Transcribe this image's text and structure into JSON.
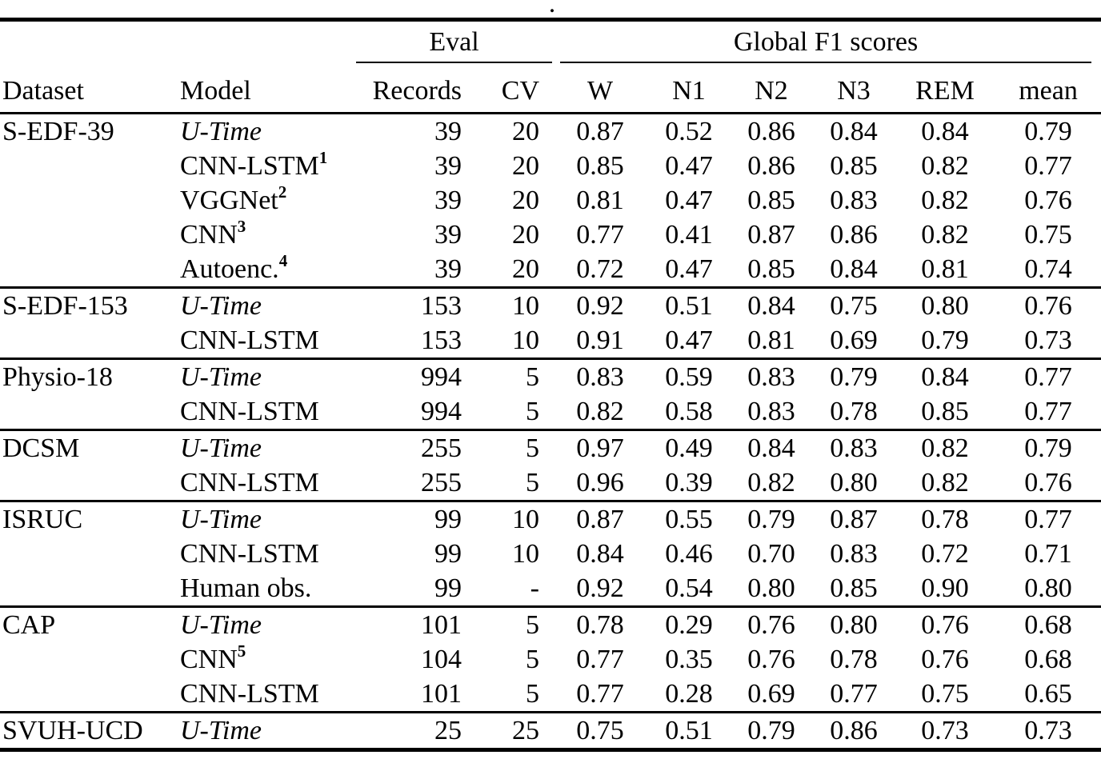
{
  "colors": {
    "text": "#000000",
    "background": "#ffffff",
    "rule": "#000000"
  },
  "caption_fragment": ".",
  "header": {
    "group_eval": "Eval",
    "group_f1": "Global F1 scores",
    "cols": [
      "Dataset",
      "Model",
      "Records",
      "CV",
      "W",
      "N1",
      "N2",
      "N3",
      "REM",
      "mean"
    ]
  },
  "groups": [
    {
      "dataset": "S-EDF-39",
      "rows": [
        {
          "model": "U-Time",
          "italic": true,
          "sup": "",
          "records": "39",
          "cv": "20",
          "scores": [
            "0.87",
            "0.52",
            "0.86",
            "0.84",
            "0.84",
            "0.79"
          ]
        },
        {
          "model": "CNN-LSTM",
          "italic": false,
          "sup": "1",
          "records": "39",
          "cv": "20",
          "scores": [
            "0.85",
            "0.47",
            "0.86",
            "0.85",
            "0.82",
            "0.77"
          ]
        },
        {
          "model": "VGGNet",
          "italic": false,
          "sup": "2",
          "records": "39",
          "cv": "20",
          "scores": [
            "0.81",
            "0.47",
            "0.85",
            "0.83",
            "0.82",
            "0.76"
          ]
        },
        {
          "model": "CNN",
          "italic": false,
          "sup": "3",
          "records": "39",
          "cv": "20",
          "scores": [
            "0.77",
            "0.41",
            "0.87",
            "0.86",
            "0.82",
            "0.75"
          ]
        },
        {
          "model": "Autoenc.",
          "italic": false,
          "sup": "4",
          "records": "39",
          "cv": "20",
          "scores": [
            "0.72",
            "0.47",
            "0.85",
            "0.84",
            "0.81",
            "0.74"
          ]
        }
      ]
    },
    {
      "dataset": "S-EDF-153",
      "rows": [
        {
          "model": "U-Time",
          "italic": true,
          "sup": "",
          "records": "153",
          "cv": "10",
          "scores": [
            "0.92",
            "0.51",
            "0.84",
            "0.75",
            "0.80",
            "0.76"
          ]
        },
        {
          "model": "CNN-LSTM",
          "italic": false,
          "sup": "",
          "records": "153",
          "cv": "10",
          "scores": [
            "0.91",
            "0.47",
            "0.81",
            "0.69",
            "0.79",
            "0.73"
          ]
        }
      ]
    },
    {
      "dataset": "Physio-18",
      "rows": [
        {
          "model": "U-Time",
          "italic": true,
          "sup": "",
          "records": "994",
          "cv": "5",
          "scores": [
            "0.83",
            "0.59",
            "0.83",
            "0.79",
            "0.84",
            "0.77"
          ]
        },
        {
          "model": "CNN-LSTM",
          "italic": false,
          "sup": "",
          "records": "994",
          "cv": "5",
          "scores": [
            "0.82",
            "0.58",
            "0.83",
            "0.78",
            "0.85",
            "0.77"
          ]
        }
      ]
    },
    {
      "dataset": "DCSM",
      "rows": [
        {
          "model": "U-Time",
          "italic": true,
          "sup": "",
          "records": "255",
          "cv": "5",
          "scores": [
            "0.97",
            "0.49",
            "0.84",
            "0.83",
            "0.82",
            "0.79"
          ]
        },
        {
          "model": "CNN-LSTM",
          "italic": false,
          "sup": "",
          "records": "255",
          "cv": "5",
          "scores": [
            "0.96",
            "0.39",
            "0.82",
            "0.80",
            "0.82",
            "0.76"
          ]
        }
      ]
    },
    {
      "dataset": "ISRUC",
      "rows": [
        {
          "model": "U-Time",
          "italic": true,
          "sup": "",
          "records": "99",
          "cv": "10",
          "scores": [
            "0.87",
            "0.55",
            "0.79",
            "0.87",
            "0.78",
            "0.77"
          ]
        },
        {
          "model": "CNN-LSTM",
          "italic": false,
          "sup": "",
          "records": "99",
          "cv": "10",
          "scores": [
            "0.84",
            "0.46",
            "0.70",
            "0.83",
            "0.72",
            "0.71"
          ]
        },
        {
          "model": "Human obs.",
          "italic": false,
          "sup": "",
          "records": "99",
          "cv": "-",
          "scores": [
            "0.92",
            "0.54",
            "0.80",
            "0.85",
            "0.90",
            "0.80"
          ]
        }
      ]
    },
    {
      "dataset": "CAP",
      "rows": [
        {
          "model": "U-Time",
          "italic": true,
          "sup": "",
          "records": "101",
          "cv": "5",
          "scores": [
            "0.78",
            "0.29",
            "0.76",
            "0.80",
            "0.76",
            "0.68"
          ]
        },
        {
          "model": "CNN",
          "italic": false,
          "sup": "5",
          "records": "104",
          "cv": "5",
          "scores": [
            "0.77",
            "0.35",
            "0.76",
            "0.78",
            "0.76",
            "0.68"
          ]
        },
        {
          "model": "CNN-LSTM",
          "italic": false,
          "sup": "",
          "records": "101",
          "cv": "5",
          "scores": [
            "0.77",
            "0.28",
            "0.69",
            "0.77",
            "0.75",
            "0.65"
          ]
        }
      ]
    },
    {
      "dataset": "SVUH-UCD",
      "rows": [
        {
          "model": "U-Time",
          "italic": true,
          "sup": "",
          "records": "25",
          "cv": "25",
          "scores": [
            "0.75",
            "0.51",
            "0.79",
            "0.86",
            "0.73",
            "0.73"
          ]
        }
      ]
    }
  ]
}
